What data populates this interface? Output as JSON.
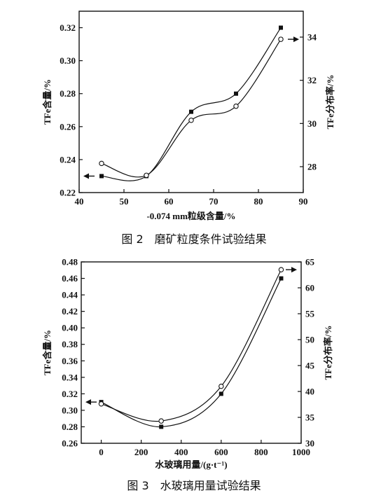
{
  "chart_data": [
    {
      "type": "line",
      "caption": "图 2　磨矿粒度条件试验结果",
      "xlabel": "-0.074 mm粒级含量/%",
      "ylabel": "TFe含量/%",
      "y2label": "TFe分布率/%",
      "xlim": [
        40,
        90
      ],
      "ylim": [
        0.22,
        0.33
      ],
      "y2lim": [
        26.8,
        35.2
      ],
      "xticks": [
        40,
        50,
        60,
        70,
        80,
        90
      ],
      "yticks": [
        0.22,
        0.24,
        0.26,
        0.28,
        0.3,
        0.32
      ],
      "y2ticks": [
        28,
        30,
        32,
        34
      ],
      "ytick_labels": [
        "0.22",
        "0.24",
        "0.26",
        "0.28",
        "0.30",
        "0.32"
      ],
      "y2tick_labels": [
        "28",
        "30",
        "32",
        "34"
      ],
      "series": [
        {
          "marker": "square-filled",
          "axis": "left",
          "x": [
            45,
            55,
            65,
            75,
            85
          ],
          "y": [
            0.23,
            0.23,
            0.269,
            0.28,
            0.32
          ]
        },
        {
          "marker": "circle-open",
          "axis": "right",
          "x": [
            45,
            55,
            65,
            75,
            85
          ],
          "y": [
            28.15,
            27.6,
            30.15,
            30.8,
            33.9
          ]
        }
      ]
    },
    {
      "type": "line",
      "caption": "图 3　水玻璃用量试验结果",
      "xlabel": "水玻璃用量/(g·t⁻¹)",
      "ylabel": "TFe含量/%",
      "y2label": "TFe分布率/%",
      "xlim": [
        -100,
        1000
      ],
      "ylim": [
        0.26,
        0.48
      ],
      "y2lim": [
        30,
        65
      ],
      "xticks": [
        0,
        200,
        400,
        600,
        800,
        1000
      ],
      "yticks": [
        0.26,
        0.28,
        0.3,
        0.32,
        0.34,
        0.36,
        0.38,
        0.4,
        0.42,
        0.44,
        0.46,
        0.48
      ],
      "y2ticks": [
        30,
        35,
        40,
        45,
        50,
        55,
        60,
        65
      ],
      "ytick_labels": [
        "0.26",
        "0.28",
        "0.30",
        "0.32",
        "0.34",
        "0.36",
        "0.38",
        "0.40",
        "0.42",
        "0.44",
        "0.46",
        "0.48"
      ],
      "y2tick_labels": [
        "30",
        "35",
        "40",
        "45",
        "50",
        "55",
        "60",
        "65"
      ],
      "series": [
        {
          "marker": "square-filled",
          "axis": "left",
          "x": [
            0,
            300,
            600,
            900
          ],
          "y": [
            0.31,
            0.28,
            0.32,
            0.46
          ]
        },
        {
          "marker": "circle-open",
          "axis": "right",
          "x": [
            0,
            300,
            600,
            900
          ],
          "y": [
            37.6,
            34.3,
            41.0,
            63.5
          ]
        }
      ]
    }
  ]
}
